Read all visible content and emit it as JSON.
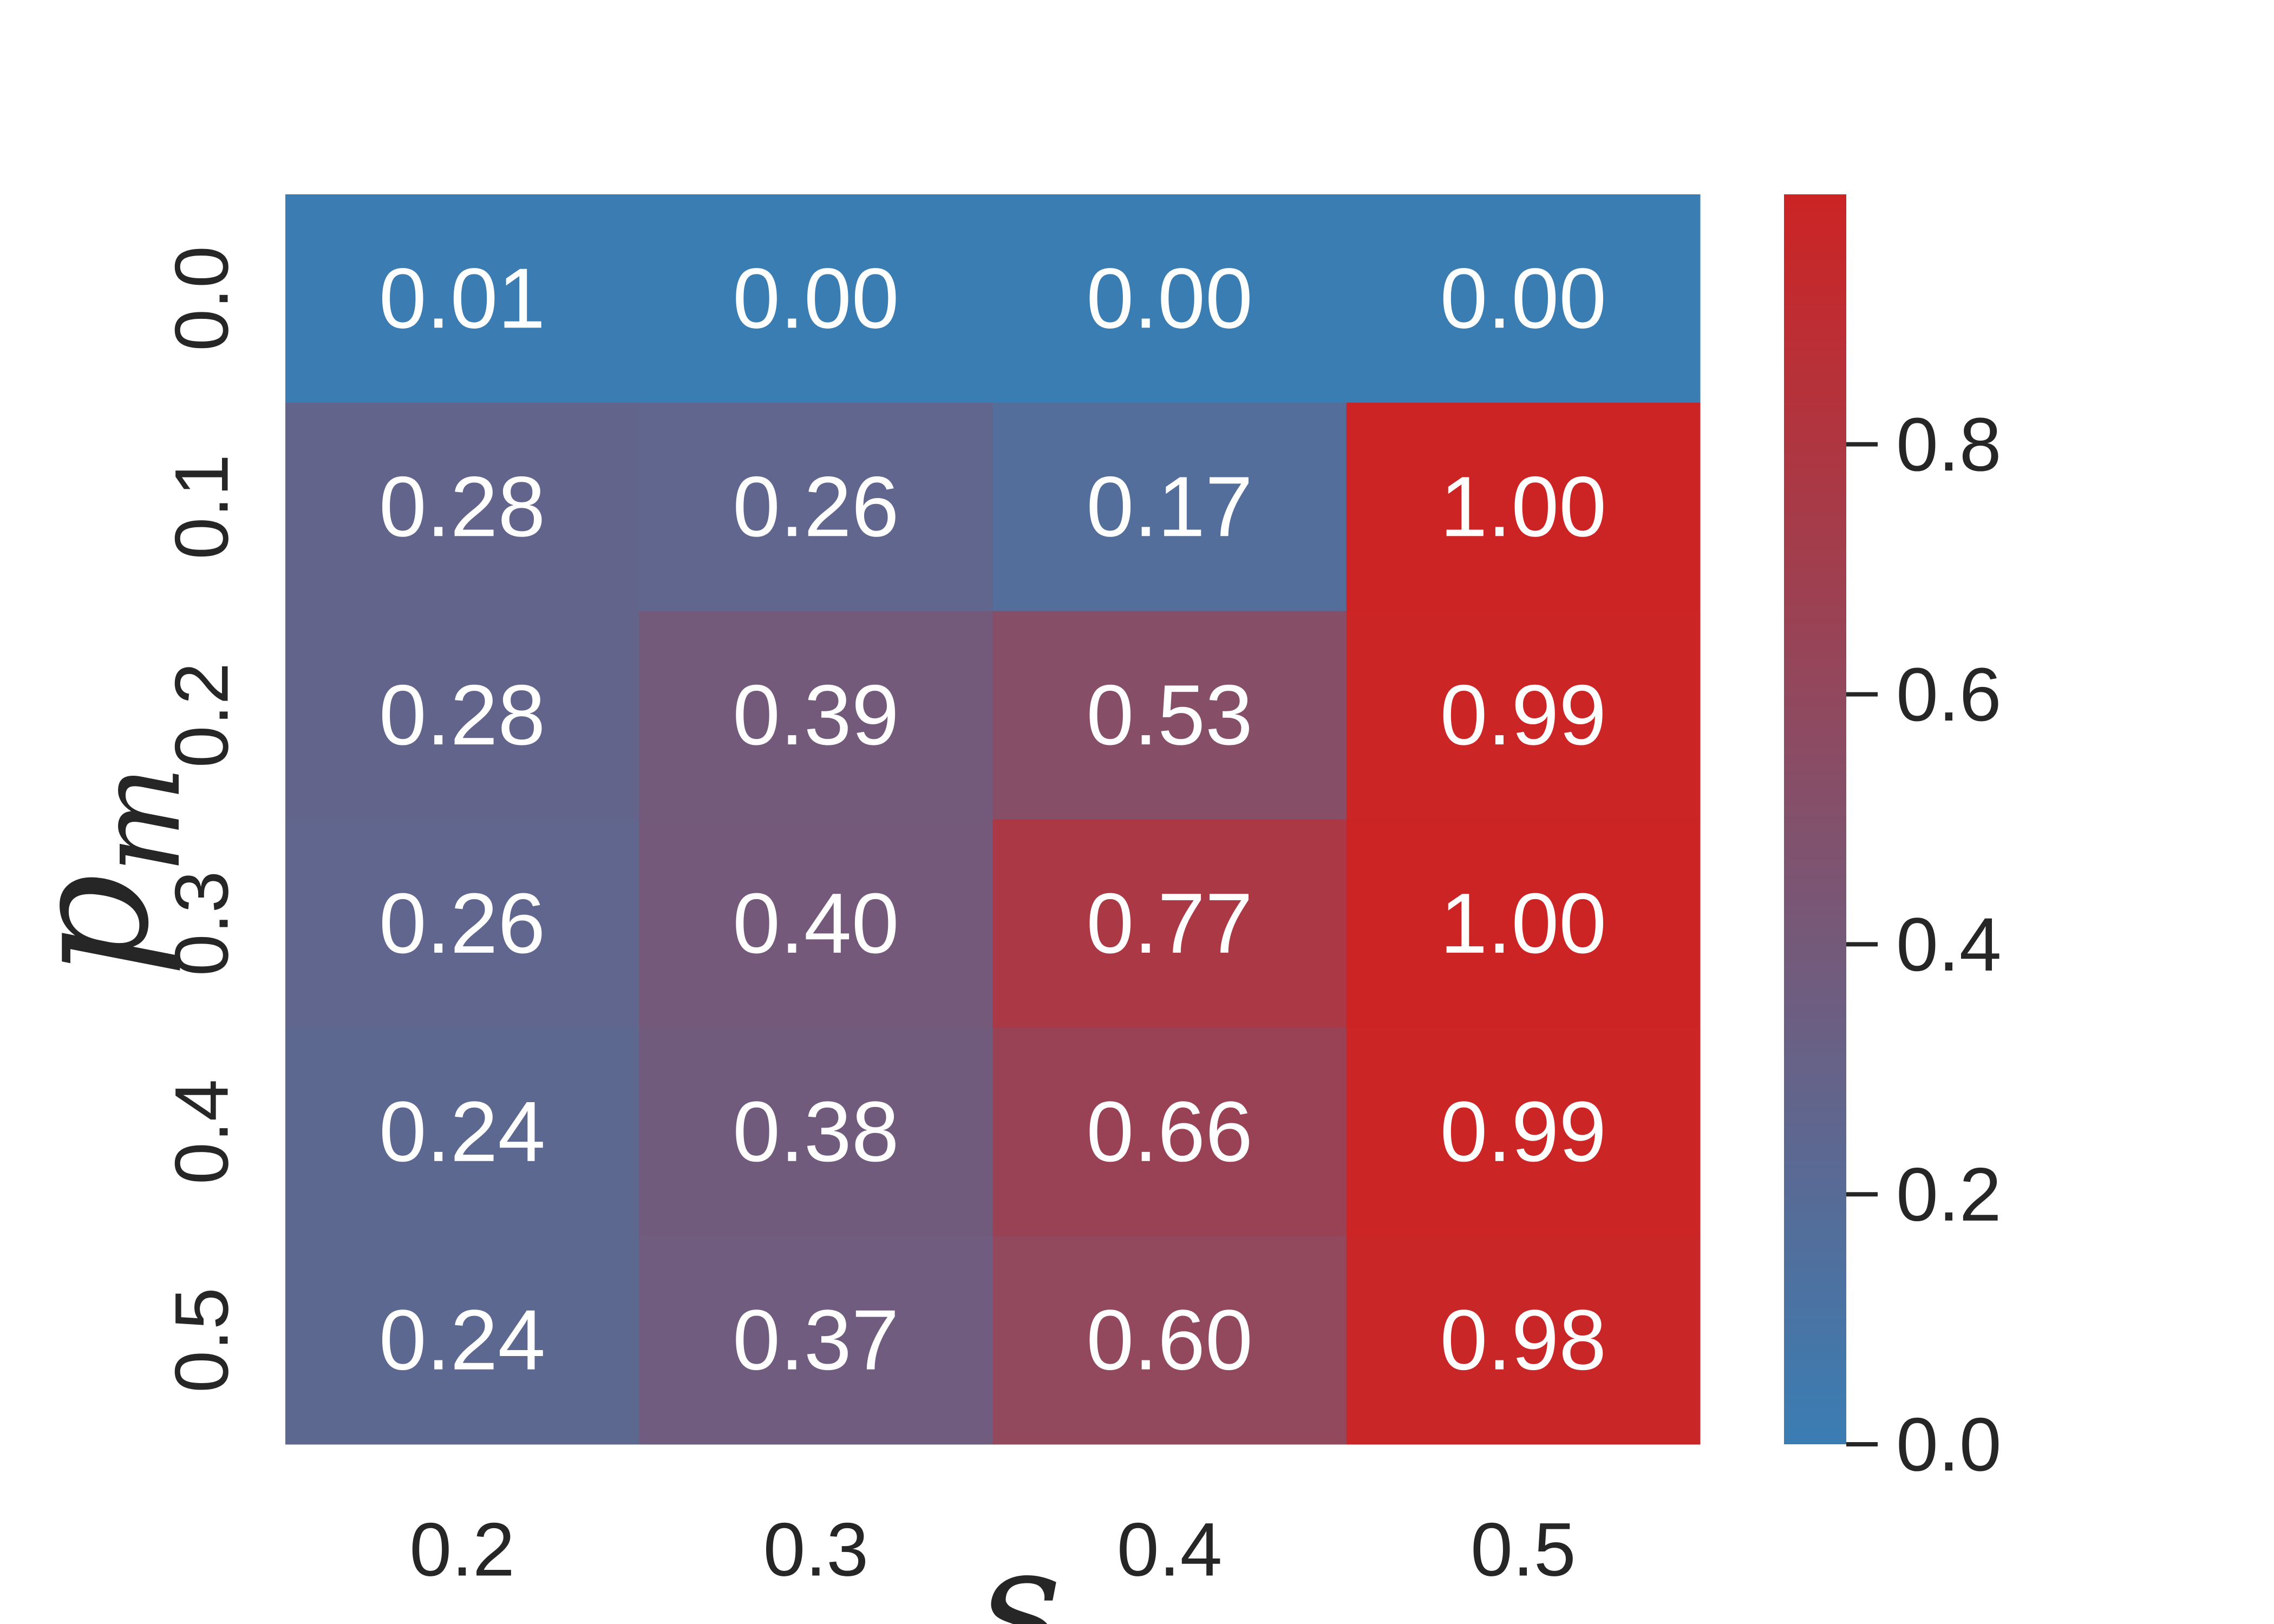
{
  "chart_data": {
    "type": "heatmap",
    "x_categories": [
      "0.2",
      "0.3",
      "0.4",
      "0.5"
    ],
    "y_categories": [
      "0.0",
      "0.1",
      "0.2",
      "0.3",
      "0.4",
      "0.5"
    ],
    "values": [
      [
        0.01,
        0.0,
        0.0,
        0.0
      ],
      [
        0.28,
        0.26,
        0.17,
        1.0
      ],
      [
        0.28,
        0.39,
        0.53,
        0.99
      ],
      [
        0.26,
        0.4,
        0.77,
        1.0
      ],
      [
        0.24,
        0.38,
        0.66,
        0.99
      ],
      [
        0.24,
        0.37,
        0.6,
        0.98
      ]
    ],
    "cell_labels": [
      [
        "0.01",
        "0.00",
        "0.00",
        "0.00"
      ],
      [
        "0.28",
        "0.26",
        "0.17",
        "1.00"
      ],
      [
        "0.28",
        "0.39",
        "0.53",
        "0.99"
      ],
      [
        "0.26",
        "0.40",
        "0.77",
        "1.00"
      ],
      [
        "0.24",
        "0.38",
        "0.66",
        "0.99"
      ],
      [
        "0.24",
        "0.37",
        "0.60",
        "0.98"
      ]
    ],
    "xlabel": "s",
    "ylabel_main": "p",
    "ylabel_sub": "m",
    "colorbar": {
      "range": [
        0.0,
        1.0
      ],
      "ticks": [
        0.0,
        0.2,
        0.4,
        0.6,
        0.8
      ],
      "tick_labels": [
        "0.0",
        "0.2",
        "0.4",
        "0.6",
        "0.8"
      ],
      "color_low": "#3a7db3",
      "color_high": "#cc2424"
    },
    "annotation_color": "#ffffff",
    "grid": false
  }
}
